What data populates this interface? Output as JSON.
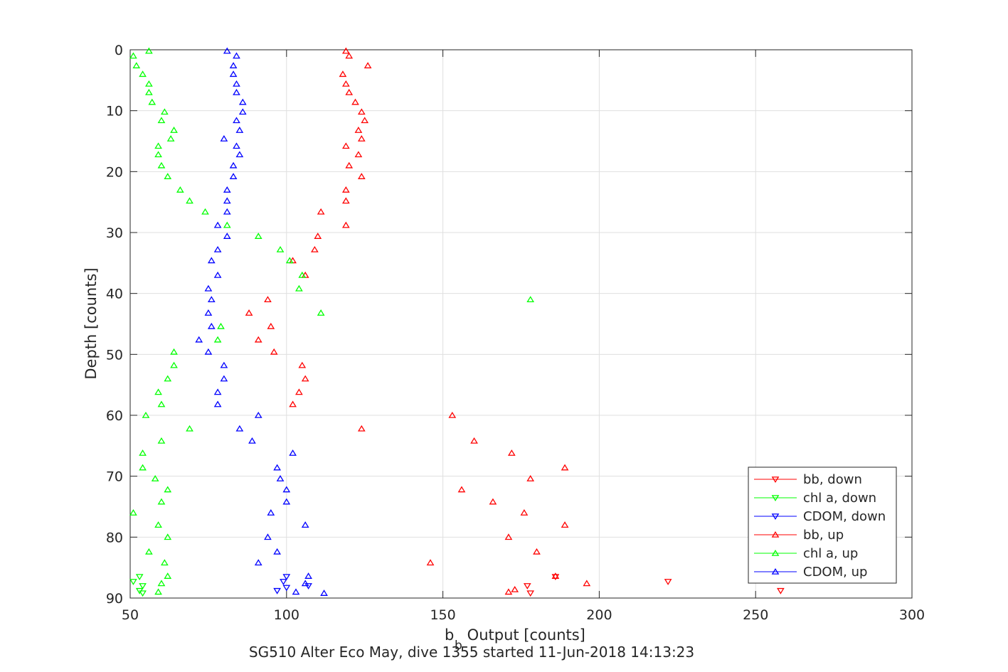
{
  "chart_data": {
    "type": "scatter",
    "xlabel_main": "b",
    "xlabel_sub": "b",
    "xlabel_rest": " Output [counts]",
    "ylabel": "Depth [counts]",
    "caption": "SG510 Alter Eco May, dive 1355 started 11-Jun-2018 14:13:23",
    "xlim": [
      50,
      300
    ],
    "ylim": [
      0,
      90
    ],
    "y_reversed": true,
    "grid": true,
    "legend_position": "bottom-right",
    "xticks": [
      50,
      100,
      150,
      200,
      250,
      300
    ],
    "yticks": [
      0,
      10,
      20,
      30,
      40,
      50,
      60,
      70,
      80,
      90
    ],
    "series": [
      {
        "name": "bb, down",
        "color": "#ff0000",
        "marker": "triangle-down",
        "points": [
          [
            222,
            87.3
          ],
          [
            258,
            88.8
          ],
          [
            186,
            86.5
          ],
          [
            177,
            88.0
          ],
          [
            178,
            89.2
          ]
        ]
      },
      {
        "name": "chl a, down",
        "color": "#00ff00",
        "marker": "triangle-down",
        "points": [
          [
            51,
            87.3
          ],
          [
            53,
            86.5
          ],
          [
            54,
            88.0
          ],
          [
            53,
            88.8
          ],
          [
            54,
            89.2
          ]
        ]
      },
      {
        "name": "CDOM, down",
        "color": "#0000ff",
        "marker": "triangle-down",
        "points": [
          [
            100,
            86.5
          ],
          [
            99,
            87.3
          ],
          [
            107,
            88.0
          ],
          [
            97,
            88.8
          ],
          [
            100,
            88.3
          ]
        ]
      },
      {
        "name": "bb, up",
        "color": "#ff0000",
        "marker": "triangle-up",
        "points": [
          [
            119,
            0.2
          ],
          [
            120,
            1.0
          ],
          [
            126,
            2.6
          ],
          [
            118,
            4.0
          ],
          [
            119,
            5.6
          ],
          [
            120,
            7.0
          ],
          [
            122,
            8.6
          ],
          [
            124,
            10.2
          ],
          [
            125,
            11.6
          ],
          [
            123,
            13.2
          ],
          [
            124,
            14.6
          ],
          [
            119,
            15.8
          ],
          [
            123,
            17.2
          ],
          [
            120,
            19.0
          ],
          [
            124,
            20.8
          ],
          [
            119,
            23.0
          ],
          [
            119,
            24.8
          ],
          [
            111,
            26.6
          ],
          [
            119,
            28.8
          ],
          [
            110,
            30.6
          ],
          [
            109,
            32.8
          ],
          [
            102,
            34.6
          ],
          [
            106,
            37.0
          ],
          [
            94,
            41.0
          ],
          [
            88,
            43.2
          ],
          [
            95,
            45.4
          ],
          [
            91,
            47.6
          ],
          [
            96,
            49.6
          ],
          [
            105,
            51.8
          ],
          [
            106,
            54.0
          ],
          [
            104,
            56.2
          ],
          [
            102,
            58.2
          ],
          [
            153,
            60.0
          ],
          [
            124,
            62.2
          ],
          [
            160,
            64.2
          ],
          [
            172,
            66.2
          ],
          [
            189,
            68.6
          ],
          [
            178,
            70.4
          ],
          [
            156,
            72.2
          ],
          [
            166,
            74.2
          ],
          [
            176,
            76.0
          ],
          [
            189,
            78.0
          ],
          [
            171,
            80.0
          ],
          [
            180,
            82.4
          ],
          [
            146,
            84.2
          ],
          [
            186,
            86.4
          ],
          [
            196,
            87.6
          ],
          [
            173,
            88.6
          ],
          [
            171,
            89.0
          ]
        ]
      },
      {
        "name": "chl a, up",
        "color": "#00ff00",
        "marker": "triangle-up",
        "points": [
          [
            56,
            0.2
          ],
          [
            51,
            1.0
          ],
          [
            52,
            2.6
          ],
          [
            54,
            4.0
          ],
          [
            56,
            5.6
          ],
          [
            56,
            7.0
          ],
          [
            57,
            8.6
          ],
          [
            61,
            10.2
          ],
          [
            60,
            11.6
          ],
          [
            64,
            13.2
          ],
          [
            63,
            14.6
          ],
          [
            59,
            15.8
          ],
          [
            59,
            17.2
          ],
          [
            60,
            19.0
          ],
          [
            62,
            20.8
          ],
          [
            66,
            23.0
          ],
          [
            69,
            24.8
          ],
          [
            74,
            26.6
          ],
          [
            81,
            28.8
          ],
          [
            91,
            30.6
          ],
          [
            98,
            32.8
          ],
          [
            101,
            34.6
          ],
          [
            105,
            37.0
          ],
          [
            104,
            39.2
          ],
          [
            178,
            41.0
          ],
          [
            111,
            43.2
          ],
          [
            79,
            45.4
          ],
          [
            78,
            47.6
          ],
          [
            64,
            49.6
          ],
          [
            64,
            51.8
          ],
          [
            62,
            54.0
          ],
          [
            59,
            56.2
          ],
          [
            60,
            58.2
          ],
          [
            55,
            60.0
          ],
          [
            69,
            62.2
          ],
          [
            60,
            64.2
          ],
          [
            54,
            66.2
          ],
          [
            54,
            68.6
          ],
          [
            58,
            70.4
          ],
          [
            62,
            72.2
          ],
          [
            60,
            74.2
          ],
          [
            51,
            76.0
          ],
          [
            59,
            78.0
          ],
          [
            62,
            80.0
          ],
          [
            56,
            82.4
          ],
          [
            61,
            84.2
          ],
          [
            62,
            86.4
          ],
          [
            60,
            87.6
          ],
          [
            59,
            89.0
          ]
        ]
      },
      {
        "name": "CDOM, up",
        "color": "#0000ff",
        "marker": "triangle-up",
        "points": [
          [
            81,
            0.2
          ],
          [
            84,
            1.0
          ],
          [
            83,
            2.6
          ],
          [
            83,
            4.0
          ],
          [
            84,
            5.6
          ],
          [
            84,
            7.0
          ],
          [
            86,
            8.6
          ],
          [
            86,
            10.2
          ],
          [
            84,
            11.6
          ],
          [
            85,
            13.2
          ],
          [
            80,
            14.6
          ],
          [
            84,
            15.8
          ],
          [
            85,
            17.2
          ],
          [
            83,
            19.0
          ],
          [
            83,
            20.8
          ],
          [
            81,
            23.0
          ],
          [
            81,
            24.8
          ],
          [
            81,
            26.6
          ],
          [
            78,
            28.8
          ],
          [
            81,
            30.6
          ],
          [
            78,
            32.8
          ],
          [
            76,
            34.6
          ],
          [
            78,
            37.0
          ],
          [
            75,
            39.2
          ],
          [
            76,
            41.0
          ],
          [
            75,
            43.2
          ],
          [
            76,
            45.4
          ],
          [
            72,
            47.6
          ],
          [
            75,
            49.6
          ],
          [
            80,
            51.8
          ],
          [
            80,
            54.0
          ],
          [
            78,
            56.2
          ],
          [
            78,
            58.2
          ],
          [
            91,
            60.0
          ],
          [
            85,
            62.2
          ],
          [
            89,
            64.2
          ],
          [
            102,
            66.2
          ],
          [
            97,
            68.6
          ],
          [
            98,
            70.4
          ],
          [
            100,
            72.2
          ],
          [
            100,
            74.2
          ],
          [
            95,
            76.0
          ],
          [
            106,
            78.0
          ],
          [
            94,
            80.0
          ],
          [
            97,
            82.4
          ],
          [
            91,
            84.2
          ],
          [
            107,
            86.4
          ],
          [
            106,
            87.6
          ],
          [
            103,
            89.0
          ],
          [
            112,
            89.2
          ]
        ]
      }
    ]
  }
}
